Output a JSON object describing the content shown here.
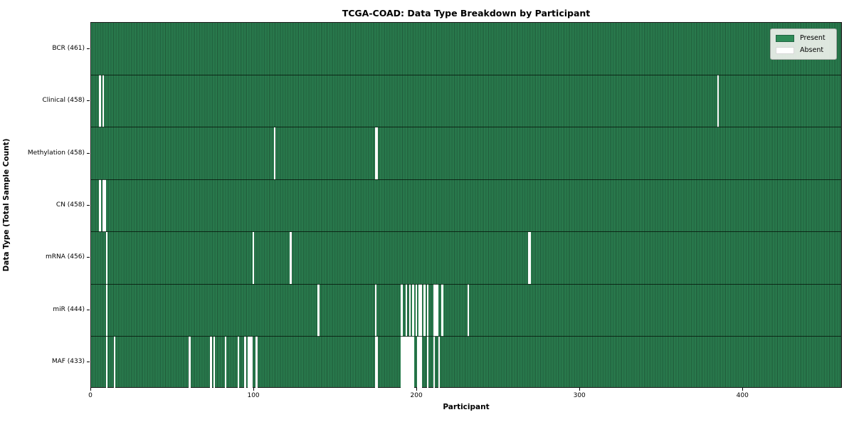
{
  "title": "TCGA-COAD: Data Type Breakdown by Participant",
  "xlabel": "Participant",
  "ylabel": "Data Type (Total Sample Count)",
  "legend": {
    "present_label": "Present",
    "absent_label": "Absent"
  },
  "colors": {
    "present": "#2e8b57",
    "present_edge": "#1b4c31",
    "absent": "#ffffff"
  },
  "chart_data": {
    "type": "heatmap",
    "title": "TCGA-COAD: Data Type Breakdown by Participant",
    "xlabel": "Participant",
    "ylabel": "Data Type (Total Sample Count)",
    "legend_entries": [
      "Present",
      "Absent"
    ],
    "legend_position": "upper right",
    "x_ticks": [
      0,
      100,
      200,
      300,
      400
    ],
    "total_participants": 461,
    "rows": [
      {
        "label": "BCR (461)",
        "data_type": "BCR",
        "present_count": 461,
        "absent_participants": []
      },
      {
        "label": "Clinical (458)",
        "data_type": "Clinical",
        "present_count": 458,
        "absent_participants": [
          5,
          7,
          384
        ]
      },
      {
        "label": "Methylation (458)",
        "data_type": "Methylation",
        "present_count": 458,
        "absent_participants": [
          112,
          174,
          175
        ]
      },
      {
        "label": "CN (458)",
        "data_type": "CN",
        "present_count": 458,
        "absent_participants": [
          5,
          7,
          8
        ]
      },
      {
        "label": "mRNA (456)",
        "data_type": "mRNA",
        "present_count": 456,
        "absent_participants": [
          9,
          99,
          122,
          268,
          269
        ]
      },
      {
        "label": "miR (444)",
        "data_type": "miR",
        "present_count": 444,
        "absent_participants": [
          9,
          139,
          174,
          190,
          193,
          195,
          197,
          199,
          201,
          202,
          204,
          206,
          210,
          211,
          212,
          215,
          231
        ]
      },
      {
        "label": "MAF (433)",
        "data_type": "MAF",
        "present_count": 433,
        "absent_participants": [
          9,
          14,
          60,
          73,
          75,
          82,
          90,
          94,
          96,
          97,
          98,
          101,
          174,
          175,
          190,
          191,
          192,
          193,
          194,
          195,
          196,
          197,
          200,
          201,
          202,
          206,
          210,
          213
        ]
      }
    ]
  }
}
